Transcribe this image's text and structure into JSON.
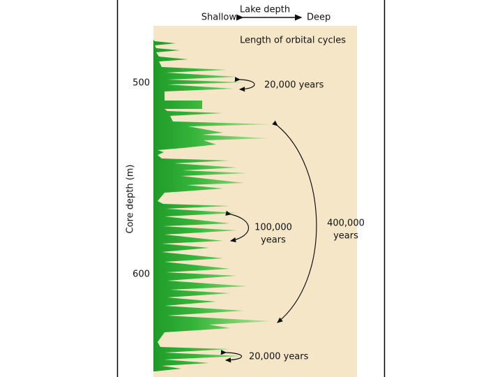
{
  "header": {
    "title": "Lake depth",
    "left": "Shallow",
    "right": "Deep"
  },
  "caption": "Length of orbital cycles",
  "axis": {
    "label": "Core depth (m)",
    "ticks": [
      "500",
      "600"
    ]
  },
  "annotations": {
    "top_cycle": "20,000 years",
    "mid_cycle": [
      "100,000",
      "years"
    ],
    "long_cycle": [
      "400,000",
      "years"
    ],
    "bottom_cycle": "20,000 years"
  }
}
